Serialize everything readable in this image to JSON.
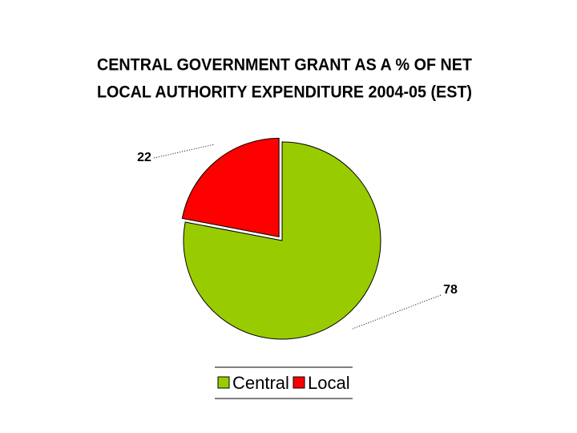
{
  "chart_data": {
    "type": "pie",
    "title": [
      "CENTRAL GOVERNMENT GRANT AS A % OF NET",
      "LOCAL AUTHORITY EXPENDITURE 2004-05 (EST)"
    ],
    "categories": [
      "Central",
      "Local"
    ],
    "values": [
      78,
      22
    ],
    "colors": [
      "#99cc00",
      "#ff0000"
    ]
  }
}
